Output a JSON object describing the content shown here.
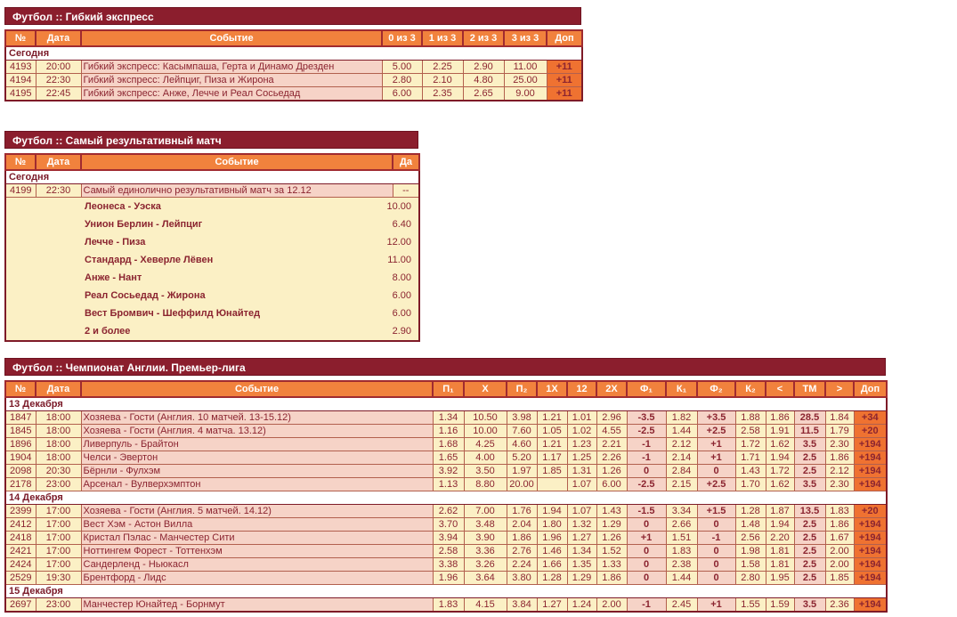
{
  "colors": {
    "title_bar_bg": "#8B1E2D",
    "header_bg": "#F1823D",
    "cell_yellow_bg": "#FBF0C5",
    "cell_pink_bg": "#F6D3C7",
    "extra_button_bg": "#EF7231",
    "text_dark_red": "#8B2430",
    "grid_border": "#B2604E"
  },
  "tables": [
    {
      "title": "Футбол :: Гибкий экспресс",
      "headers": [
        "№",
        "Дата",
        "Событие",
        "0 из 3",
        "1 из 3",
        "2 из 3",
        "3 из 3",
        "Доп"
      ],
      "sections": [
        {
          "label": "Сегодня",
          "rows": [
            {
              "num": "4193",
              "time": "20:00",
              "event": "Гибкий экспресс: Касымпаша, Герта и Динамо Дрезден",
              "cells": [
                "5.00",
                "2.25",
                "2.90",
                "11.00"
              ],
              "extra": "+11"
            },
            {
              "num": "4194",
              "time": "22:30",
              "event": "Гибкий экспресс: Лейпциг, Пиза и Жирона",
              "cells": [
                "2.80",
                "2.10",
                "4.80",
                "25.00"
              ],
              "extra": "+11"
            },
            {
              "num": "4195",
              "time": "22:45",
              "event": "Гибкий экспресс: Анже, Лечче и Реал Сосьедад",
              "cells": [
                "6.00",
                "2.35",
                "2.65",
                "9.00"
              ],
              "extra": "+11"
            }
          ]
        }
      ]
    },
    {
      "title": "Футбол :: Самый результативный матч",
      "headers": [
        "№",
        "Дата",
        "Событие",
        "Да"
      ],
      "sections": [
        {
          "label": "Сегодня",
          "rows": [
            {
              "num": "4199",
              "time": "22:30",
              "event": "Самый единолично результативный матч за 12.12",
              "cells": [
                "--"
              ]
            }
          ]
        }
      ],
      "options": [
        {
          "name": "Леонеса - Уэска",
          "odds": "10.00"
        },
        {
          "name": "Унион Берлин - Лейпциг",
          "odds": "6.40"
        },
        {
          "name": "Лечче - Пиза",
          "odds": "12.00"
        },
        {
          "name": "Стандард - Хеверле Лёвен",
          "odds": "11.00"
        },
        {
          "name": "Анже - Нант",
          "odds": "8.00"
        },
        {
          "name": "Реал Сосьедад - Жирона",
          "odds": "6.00"
        },
        {
          "name": "Вест Бромвич - Шеффилд Юнайтед",
          "odds": "6.00"
        },
        {
          "name": "2 и более",
          "odds": "2.90"
        }
      ]
    },
    {
      "title": "Футбол :: Чемпионат Англии. Премьер-лига",
      "headers": [
        "№",
        "Дата",
        "Событие",
        "П₁",
        "X",
        "П₂",
        "1X",
        "12",
        "2X",
        "Ф₁",
        "К₁",
        "Ф₂",
        "К₂",
        "<",
        "ТМ",
        ">",
        "Доп"
      ],
      "sections": [
        {
          "label": "13 Декабря",
          "rows": [
            {
              "num": "1847",
              "time": "18:00",
              "event": "Хозяева - Гости (Англия. 10 матчей. 13-15.12)",
              "cells": [
                "1.34",
                "10.50",
                "3.98",
                "1.21",
                "1.01",
                "2.96",
                "-3.5",
                "1.82",
                "+3.5",
                "1.88",
                "1.86",
                "28.5",
                "1.84"
              ],
              "extra": "+34"
            },
            {
              "num": "1845",
              "time": "18:00",
              "event": "Хозяева - Гости (Англия. 4 матча. 13.12)",
              "cells": [
                "1.16",
                "10.00",
                "7.60",
                "1.05",
                "1.02",
                "4.55",
                "-2.5",
                "1.44",
                "+2.5",
                "2.58",
                "1.91",
                "11.5",
                "1.79"
              ],
              "extra": "+20"
            },
            {
              "num": "1896",
              "time": "18:00",
              "event": "Ливерпуль - Брайтон",
              "cells": [
                "1.68",
                "4.25",
                "4.60",
                "1.21",
                "1.23",
                "2.21",
                "-1",
                "2.12",
                "+1",
                "1.72",
                "1.62",
                "3.5",
                "2.30"
              ],
              "extra": "+194"
            },
            {
              "num": "1904",
              "time": "18:00",
              "event": "Челси - Эвертон",
              "cells": [
                "1.65",
                "4.00",
                "5.20",
                "1.17",
                "1.25",
                "2.26",
                "-1",
                "2.14",
                "+1",
                "1.71",
                "1.94",
                "2.5",
                "1.86"
              ],
              "extra": "+194"
            },
            {
              "num": "2098",
              "time": "20:30",
              "event": "Бёрнли - Фулхэм",
              "cells": [
                "3.92",
                "3.50",
                "1.97",
                "1.85",
                "1.31",
                "1.26",
                "0",
                "2.84",
                "0",
                "1.43",
                "1.72",
                "2.5",
                "2.12"
              ],
              "extra": "+194"
            },
            {
              "num": "2178",
              "time": "23:00",
              "event": "Арсенал - Вулверхэмптон",
              "cells": [
                "1.13",
                "8.80",
                "20.00",
                "",
                "1.07",
                "6.00",
                "-2.5",
                "2.15",
                "+2.5",
                "1.70",
                "1.62",
                "3.5",
                "2.30"
              ],
              "extra": "+194"
            }
          ]
        },
        {
          "label": "14 Декабря",
          "rows": [
            {
              "num": "2399",
              "time": "17:00",
              "event": "Хозяева - Гости (Англия. 5 матчей. 14.12)",
              "cells": [
                "2.62",
                "7.00",
                "1.76",
                "1.94",
                "1.07",
                "1.43",
                "-1.5",
                "3.34",
                "+1.5",
                "1.28",
                "1.87",
                "13.5",
                "1.83"
              ],
              "extra": "+20"
            },
            {
              "num": "2412",
              "time": "17:00",
              "event": "Вест Хэм - Астон Вилла",
              "cells": [
                "3.70",
                "3.48",
                "2.04",
                "1.80",
                "1.32",
                "1.29",
                "0",
                "2.66",
                "0",
                "1.48",
                "1.94",
                "2.5",
                "1.86"
              ],
              "extra": "+194"
            },
            {
              "num": "2418",
              "time": "17:00",
              "event": "Кристал Пэлас - Манчестер Сити",
              "cells": [
                "3.94",
                "3.90",
                "1.86",
                "1.96",
                "1.27",
                "1.26",
                "+1",
                "1.51",
                "-1",
                "2.56",
                "2.20",
                "2.5",
                "1.67"
              ],
              "extra": "+194"
            },
            {
              "num": "2421",
              "time": "17:00",
              "event": "Ноттингем Форест - Тоттенхэм",
              "cells": [
                "2.58",
                "3.36",
                "2.76",
                "1.46",
                "1.34",
                "1.52",
                "0",
                "1.83",
                "0",
                "1.98",
                "1.81",
                "2.5",
                "2.00"
              ],
              "extra": "+194"
            },
            {
              "num": "2424",
              "time": "17:00",
              "event": "Сандерленд - Ньюкасл",
              "cells": [
                "3.38",
                "3.26",
                "2.24",
                "1.66",
                "1.35",
                "1.33",
                "0",
                "2.38",
                "0",
                "1.58",
                "1.81",
                "2.5",
                "2.00"
              ],
              "extra": "+194"
            },
            {
              "num": "2529",
              "time": "19:30",
              "event": "Брентфорд - Лидс",
              "cells": [
                "1.96",
                "3.64",
                "3.80",
                "1.28",
                "1.29",
                "1.86",
                "0",
                "1.44",
                "0",
                "2.80",
                "1.95",
                "2.5",
                "1.85"
              ],
              "extra": "+194"
            }
          ]
        },
        {
          "label": "15 Декабря",
          "rows": [
            {
              "num": "2697",
              "time": "23:00",
              "event": "Манчестер Юнайтед - Борнмут",
              "cells": [
                "1.83",
                "4.15",
                "3.84",
                "1.27",
                "1.24",
                "2.00",
                "-1",
                "2.45",
                "+1",
                "1.55",
                "1.59",
                "3.5",
                "2.36"
              ],
              "extra": "+194"
            }
          ]
        }
      ]
    }
  ]
}
